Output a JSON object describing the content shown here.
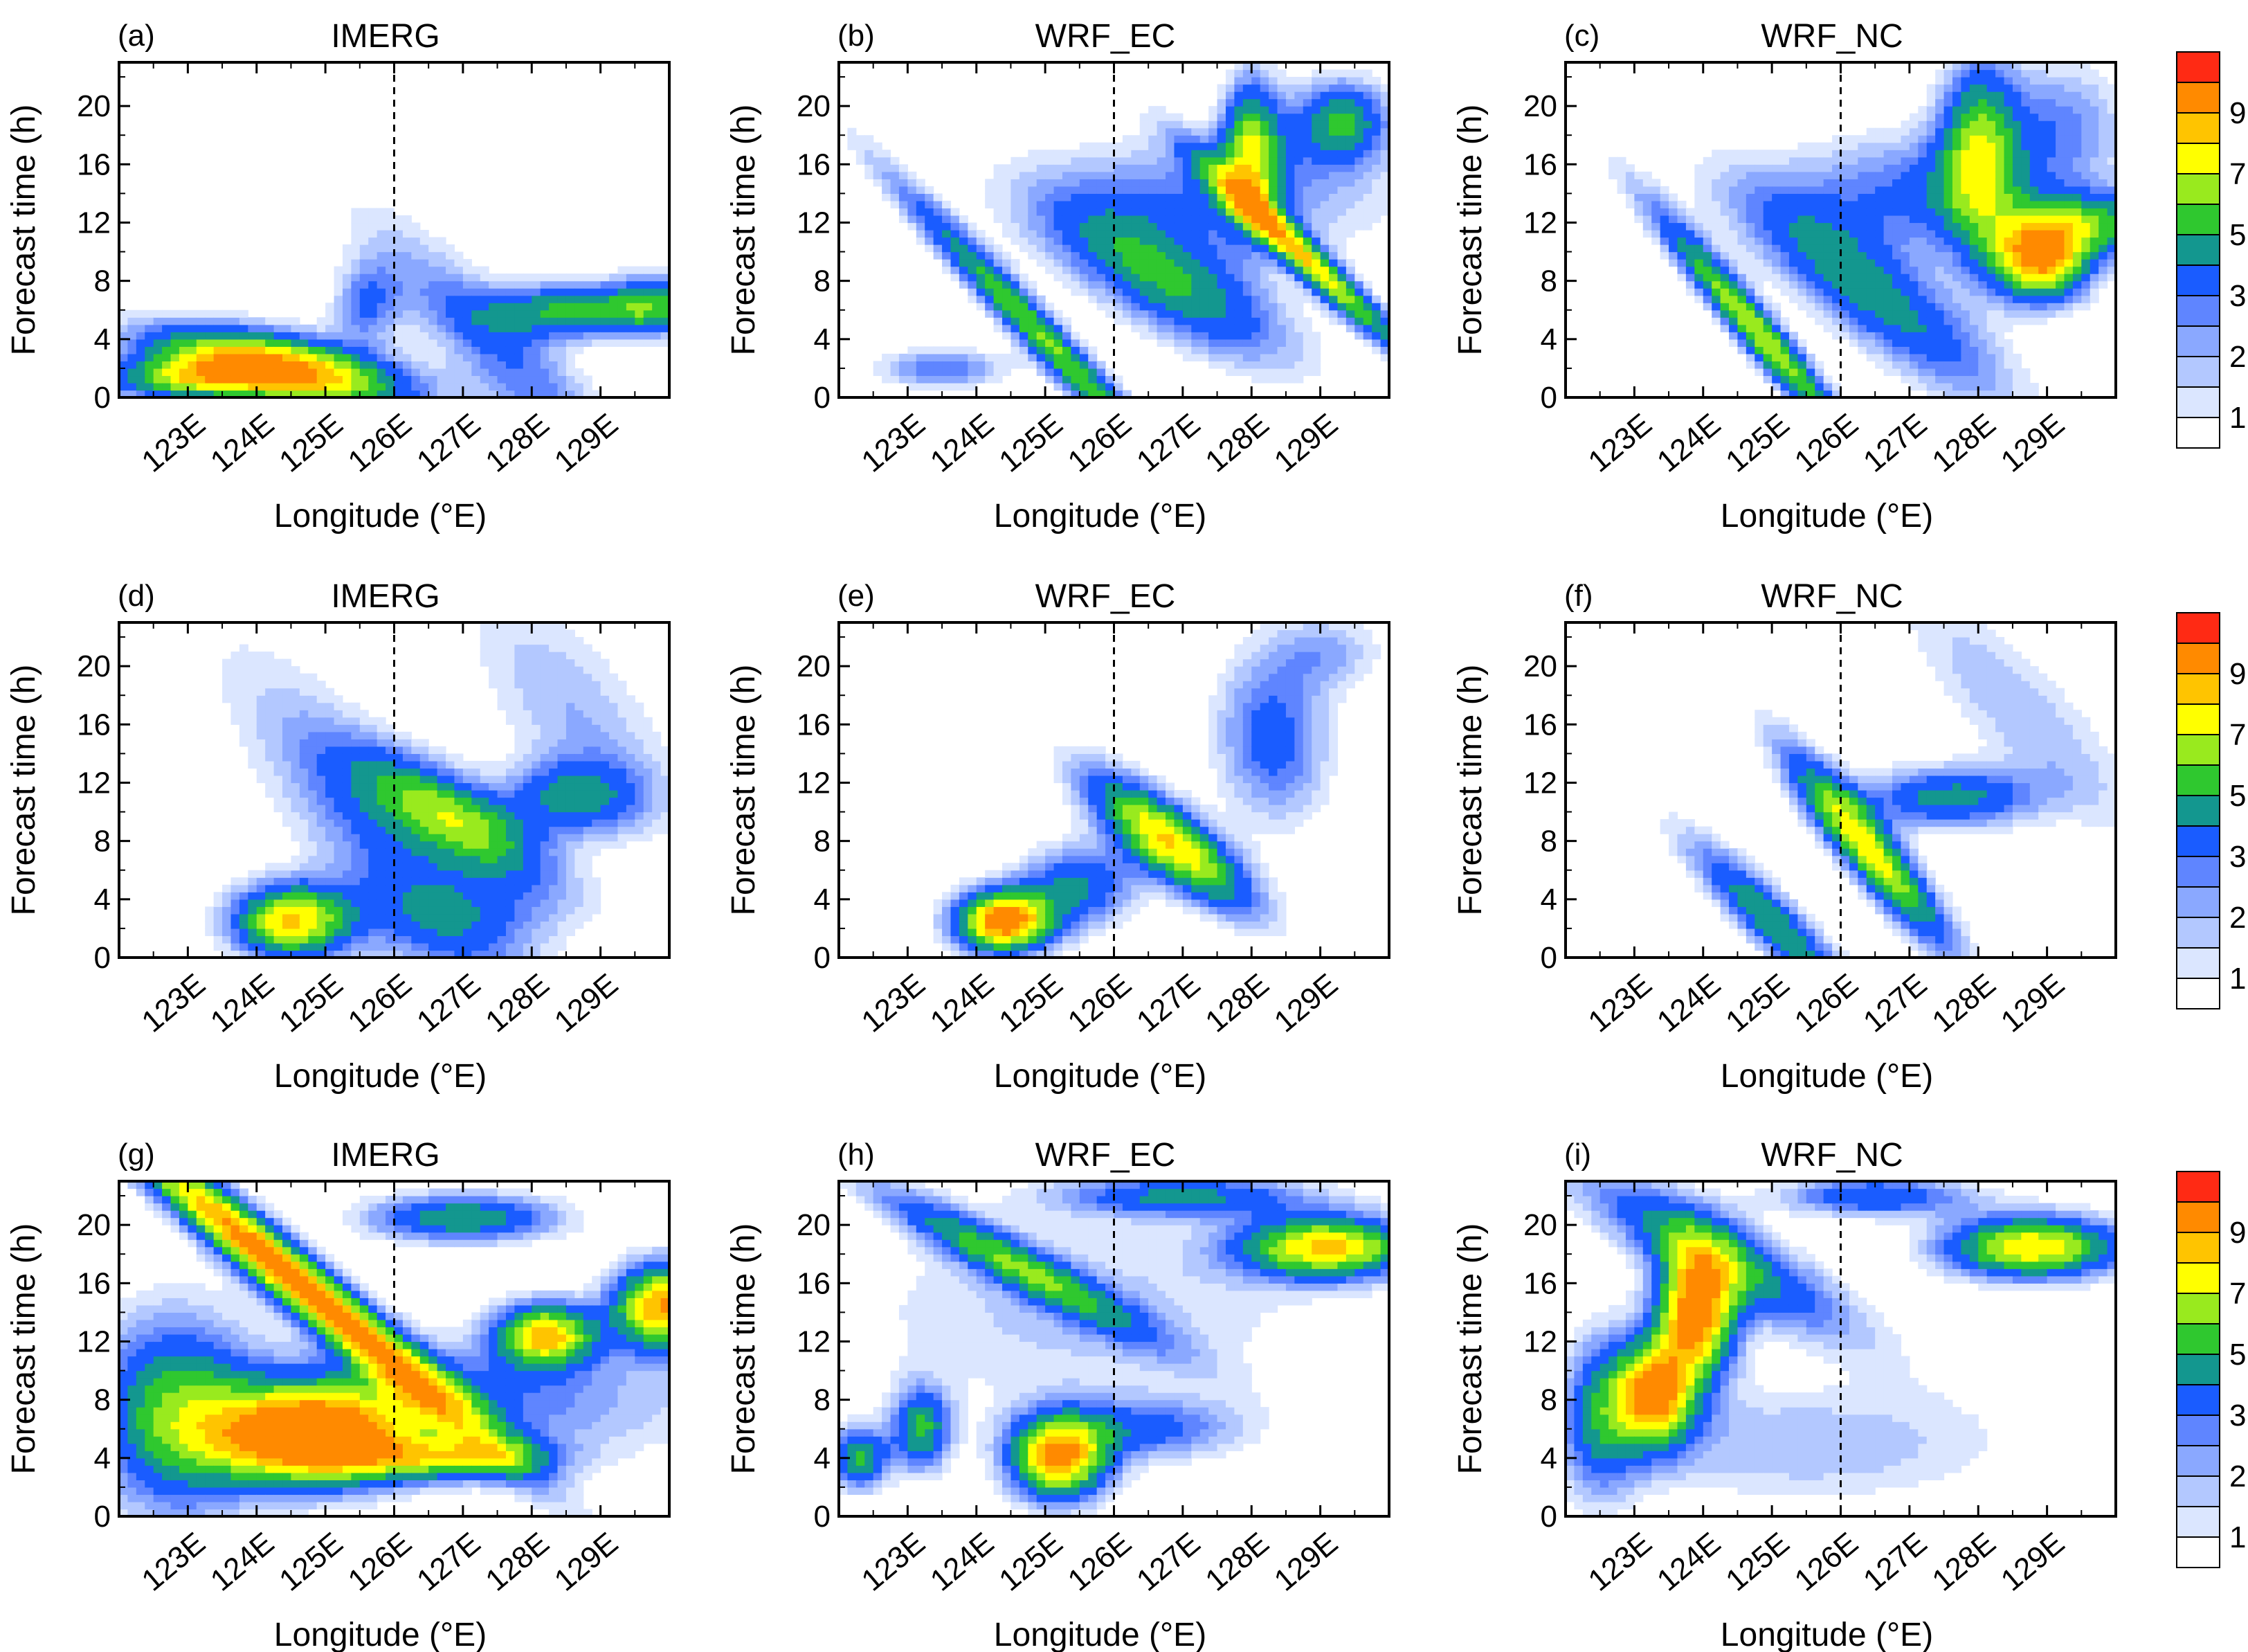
{
  "chart_data": {
    "type": "heatmap",
    "xlabel": "Longitude (°E)",
    "ylabel": "Forecast time (h)",
    "xlim": [
      122,
      130
    ],
    "ylim": [
      0,
      23
    ],
    "x_ticks": [
      123,
      124,
      125,
      126,
      127,
      128,
      129
    ],
    "x_tick_labels": [
      "123E",
      "124E",
      "125E",
      "126E",
      "127E",
      "128E",
      "129E"
    ],
    "y_ticks": [
      0,
      4,
      8,
      12,
      16,
      20
    ],
    "y_tick_labels": [
      "0",
      "4",
      "8",
      "12",
      "16",
      "20"
    ],
    "reference_line_lon": 126,
    "colorbar": {
      "levels": [
        1,
        1.5,
        2,
        2.5,
        3,
        4,
        5,
        6,
        7,
        8,
        9
      ],
      "labels": [
        "1",
        "2",
        "3",
        "5",
        "7",
        "9"
      ],
      "colors": [
        "#ffffff",
        "#dbe6ff",
        "#b3c8ff",
        "#8aa8ff",
        "#5f85ff",
        "#1a5cff",
        "#13978f",
        "#2fc82f",
        "#99ea1e",
        "#ffff00",
        "#ffc400",
        "#ff8a00",
        "#ff2a14"
      ]
    },
    "panels": [
      {
        "letter": "(a)",
        "title": "IMERG",
        "row": 0,
        "col": 0,
        "blobs": [
          {
            "lon": 124.3,
            "t": 2.0,
            "sl": 1.3,
            "st": 1.6,
            "amp": 10,
            "rot": 0.1
          },
          {
            "lon": 122.9,
            "t": 1.2,
            "sl": 0.8,
            "st": 1.0,
            "amp": 5
          },
          {
            "lon": 125.6,
            "t": 6.5,
            "sl": 0.35,
            "st": 2.0,
            "amp": 3
          },
          {
            "lon": 127.5,
            "t": 3.5,
            "sl": 1.6,
            "st": 2.5,
            "amp": 3,
            "rot": 0.5
          },
          {
            "lon": 128.7,
            "t": 6.0,
            "sl": 0.9,
            "st": 1.3,
            "amp": 5.5
          },
          {
            "lon": 129.8,
            "t": 6.5,
            "sl": 0.4,
            "st": 1.5,
            "amp": 3.5
          }
        ]
      },
      {
        "letter": "(b)",
        "title": "WRF_EC",
        "row": 0,
        "col": 1,
        "blobs": [
          {
            "lon": 125.0,
            "t": 4.0,
            "sl": 1.8,
            "st": 1.2,
            "amp": 6,
            "rot": 0.55
          },
          {
            "lon": 126.8,
            "t": 8.0,
            "sl": 1.3,
            "st": 2.5,
            "amp": 5,
            "rot": 0.3
          },
          {
            "lon": 128.8,
            "t": 9.5,
            "sl": 1.2,
            "st": 1.0,
            "amp": 7.5,
            "rot": 0.5
          },
          {
            "lon": 128.0,
            "t": 17.0,
            "sl": 0.3,
            "st": 3.5,
            "amp": 6
          },
          {
            "lon": 129.3,
            "t": 19.0,
            "sl": 0.5,
            "st": 2.0,
            "amp": 5
          },
          {
            "lon": 127.5,
            "t": 14.0,
            "sl": 1.8,
            "st": 3.0,
            "amp": 2.8
          },
          {
            "lon": 123.5,
            "t": 2.0,
            "sl": 0.7,
            "st": 1.0,
            "amp": 3
          }
        ]
      },
      {
        "letter": "(c)",
        "title": "WRF_NC",
        "row": 0,
        "col": 2,
        "blobs": [
          {
            "lon": 124.8,
            "t": 4.5,
            "sl": 1.3,
            "st": 1.2,
            "amp": 7,
            "rot": 0.6
          },
          {
            "lon": 126.5,
            "t": 7.0,
            "sl": 1.5,
            "st": 2.5,
            "amp": 4.5,
            "rot": 0.4
          },
          {
            "lon": 128.9,
            "t": 9.5,
            "sl": 0.5,
            "st": 2.0,
            "amp": 9
          },
          {
            "lon": 128.0,
            "t": 17.0,
            "sl": 0.4,
            "st": 4.5,
            "amp": 5.5
          },
          {
            "lon": 129.8,
            "t": 12.0,
            "sl": 0.8,
            "st": 1.5,
            "amp": 4.5
          },
          {
            "lon": 127.2,
            "t": 14.0,
            "sl": 1.5,
            "st": 3.0,
            "amp": 3.2
          },
          {
            "lon": 129.2,
            "t": 19.0,
            "sl": 0.7,
            "st": 3.0,
            "amp": 2.5
          }
        ]
      },
      {
        "letter": "(d)",
        "title": "IMERG",
        "row": 1,
        "col": 0,
        "blobs": [
          {
            "lon": 124.5,
            "t": 2.5,
            "sl": 0.6,
            "st": 1.8,
            "amp": 8
          },
          {
            "lon": 126.9,
            "t": 9.5,
            "sl": 1.0,
            "st": 2.0,
            "amp": 6,
            "rot": 0.3
          },
          {
            "lon": 128.6,
            "t": 11.0,
            "sl": 0.7,
            "st": 1.8,
            "amp": 4
          },
          {
            "lon": 126.0,
            "t": 7.0,
            "sl": 2.0,
            "st": 4.0,
            "amp": 3,
            "rot": 0.6
          },
          {
            "lon": 128.6,
            "t": 17.0,
            "sl": 1.3,
            "st": 4.0,
            "amp": 2,
            "rot": 0.5
          },
          {
            "lon": 127.0,
            "t": 3.0,
            "sl": 1.2,
            "st": 2.0,
            "amp": 1.8
          }
        ]
      },
      {
        "letter": "(e)",
        "title": "WRF_EC",
        "row": 1,
        "col": 1,
        "blobs": [
          {
            "lon": 124.4,
            "t": 2.5,
            "sl": 0.5,
            "st": 1.5,
            "amp": 10
          },
          {
            "lon": 126.8,
            "t": 8.0,
            "sl": 0.9,
            "st": 1.8,
            "amp": 8,
            "rot": 0.4
          },
          {
            "lon": 125.5,
            "t": 5.0,
            "sl": 0.6,
            "st": 2.0,
            "amp": 4
          },
          {
            "lon": 128.3,
            "t": 15.0,
            "sl": 0.6,
            "st": 4.0,
            "amp": 3.5,
            "rot": 0.3
          },
          {
            "lon": 129.1,
            "t": 21.0,
            "sl": 0.6,
            "st": 2.0,
            "amp": 2
          }
        ]
      },
      {
        "letter": "(f)",
        "title": "WRF_NC",
        "row": 1,
        "col": 2,
        "blobs": [
          {
            "lon": 125.0,
            "t": 2.5,
            "sl": 1.0,
            "st": 1.5,
            "amp": 5,
            "rot": 0.5
          },
          {
            "lon": 126.4,
            "t": 7.5,
            "sl": 1.0,
            "st": 1.6,
            "amp": 7.5,
            "rot": 0.6
          },
          {
            "lon": 127.6,
            "t": 11.0,
            "sl": 0.9,
            "st": 1.5,
            "amp": 4.5
          },
          {
            "lon": 128.6,
            "t": 17.0,
            "sl": 1.5,
            "st": 3.0,
            "amp": 2,
            "rot": 0.5
          }
        ]
      },
      {
        "letter": "(g)",
        "title": "IMERG",
        "row": 2,
        "col": 0,
        "blobs": [
          {
            "lon": 124.5,
            "t": 16.5,
            "sl": 2.2,
            "st": 1.5,
            "amp": 10,
            "rot": 0.45
          },
          {
            "lon": 124.8,
            "t": 5.5,
            "sl": 1.0,
            "st": 2.3,
            "amp": 11
          },
          {
            "lon": 122.8,
            "t": 7.0,
            "sl": 0.8,
            "st": 5.0,
            "amp": 5
          },
          {
            "lon": 126.8,
            "t": 4.0,
            "sl": 1.0,
            "st": 1.0,
            "amp": 5
          },
          {
            "lon": 128.2,
            "t": 12.5,
            "sl": 0.5,
            "st": 1.5,
            "amp": 8
          },
          {
            "lon": 129.9,
            "t": 14.5,
            "sl": 0.5,
            "st": 2.0,
            "amp": 9
          },
          {
            "lon": 127.0,
            "t": 20.5,
            "sl": 1.0,
            "st": 1.2,
            "amp": 5
          },
          {
            "lon": 127.0,
            "t": 8.0,
            "sl": 2.5,
            "st": 3.0,
            "amp": 3
          }
        ]
      },
      {
        "letter": "(h)",
        "title": "WRF_EC",
        "row": 2,
        "col": 1,
        "blobs": [
          {
            "lon": 125.2,
            "t": 4.0,
            "sl": 0.5,
            "st": 2.0,
            "amp": 9
          },
          {
            "lon": 129.1,
            "t": 18.5,
            "sl": 0.9,
            "st": 1.5,
            "amp": 8
          },
          {
            "lon": 124.5,
            "t": 17.5,
            "sl": 1.5,
            "st": 1.2,
            "amp": 5,
            "rot": 0.3
          },
          {
            "lon": 127.0,
            "t": 22.0,
            "sl": 1.3,
            "st": 1.0,
            "amp": 4
          },
          {
            "lon": 123.2,
            "t": 6.0,
            "sl": 0.3,
            "st": 2.0,
            "amp": 5
          },
          {
            "lon": 122.3,
            "t": 4.0,
            "sl": 0.3,
            "st": 1.5,
            "amp": 5
          },
          {
            "lon": 126.5,
            "t": 6.0,
            "sl": 1.0,
            "st": 1.5,
            "amp": 3
          },
          {
            "lon": 125.5,
            "t": 14.0,
            "sl": 2.5,
            "st": 5.0,
            "amp": 1.7
          }
        ]
      },
      {
        "letter": "(i)",
        "title": "WRF_NC",
        "row": 2,
        "col": 2,
        "blobs": [
          {
            "lon": 123.9,
            "t": 14.0,
            "sl": 0.4,
            "st": 3.0,
            "amp": 10
          },
          {
            "lon": 123.3,
            "t": 8.5,
            "sl": 0.4,
            "st": 2.5,
            "amp": 9
          },
          {
            "lon": 124.2,
            "t": 18.0,
            "sl": 1.5,
            "st": 2.0,
            "amp": 5,
            "rot": 0.3
          },
          {
            "lon": 122.5,
            "t": 7.0,
            "sl": 0.4,
            "st": 4.0,
            "amp": 4
          },
          {
            "lon": 128.8,
            "t": 18.5,
            "sl": 0.9,
            "st": 1.5,
            "amp": 8
          },
          {
            "lon": 126.5,
            "t": 22.0,
            "sl": 1.0,
            "st": 1.0,
            "amp": 4
          },
          {
            "lon": 125.5,
            "t": 5.0,
            "sl": 2.2,
            "st": 3.0,
            "amp": 2
          }
        ]
      }
    ]
  }
}
